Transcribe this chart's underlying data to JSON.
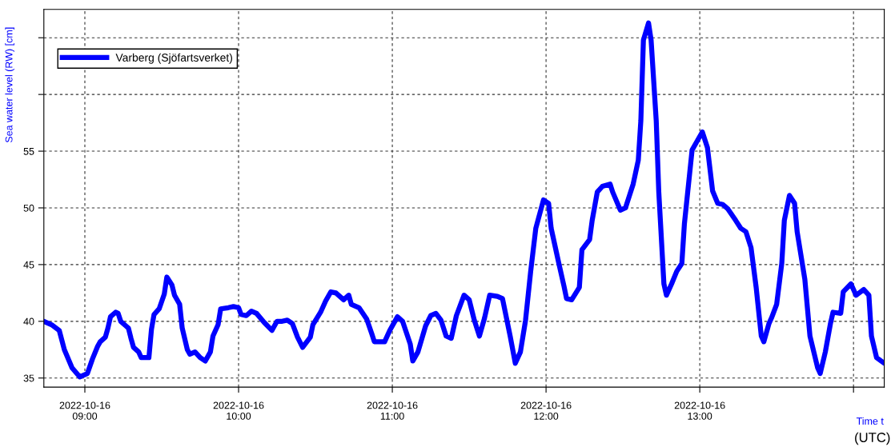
{
  "chart_data": {
    "type": "line",
    "ylabel": "Sea water level (RW) [cm]",
    "xlabel": "Time t",
    "annotations": [
      "(UTC)"
    ],
    "xlim": [
      "2022-10-16T08:44",
      "2022-10-16T14:12"
    ],
    "xticks": [
      {
        "value": "2022-10-16T09:00",
        "label": "2022-10-16\n09:00"
      },
      {
        "value": "2022-10-16T10:00",
        "label": "2022-10-16\n10:00"
      },
      {
        "value": "2022-10-16T11:00",
        "label": "2022-10-16\n11:00"
      },
      {
        "value": "2022-10-16T12:00",
        "label": "2022-10-16\n12:00"
      },
      {
        "value": "2022-10-16T13:00",
        "label": "2022-10-16\n13:00"
      },
      {
        "value": "2022-10-16T14:00",
        "label": null
      }
    ],
    "ylim": [
      34.2,
      67.5
    ],
    "yticks": [
      35,
      40,
      45,
      50,
      55,
      {
        "value": 60,
        "label": null
      },
      {
        "value": 65,
        "label": null
      }
    ],
    "grid": true,
    "legend": "top left",
    "line_style": "solid",
    "marker": "none",
    "series": [
      {
        "name": "Varberg (Sjöfartsverket)",
        "color": "#0000ff",
        "x": [
          "2022-10-16T08:44",
          "2022-10-16T08:47",
          "2022-10-16T08:50",
          "2022-10-16T08:52",
          "2022-10-16T08:55",
          "2022-10-16T08:58",
          "2022-10-16T09:01",
          "2022-10-16T09:03",
          "2022-10-16T09:05",
          "2022-10-16T09:06",
          "2022-10-16T09:08",
          "2022-10-16T09:09",
          "2022-10-16T09:10",
          "2022-10-16T09:12",
          "2022-10-16T09:13",
          "2022-10-16T09:14",
          "2022-10-16T09:16",
          "2022-10-16T09:17",
          "2022-10-16T09:18",
          "2022-10-16T09:19",
          "2022-10-16T09:21",
          "2022-10-16T09:22",
          "2022-10-16T09:25",
          "2022-10-16T09:26",
          "2022-10-16T09:27",
          "2022-10-16T09:29",
          "2022-10-16T09:31",
          "2022-10-16T09:32",
          "2022-10-16T09:34",
          "2022-10-16T09:35",
          "2022-10-16T09:37",
          "2022-10-16T09:38",
          "2022-10-16T09:40",
          "2022-10-16T09:41",
          "2022-10-16T09:43",
          "2022-10-16T09:45",
          "2022-10-16T09:47",
          "2022-10-16T09:49",
          "2022-10-16T09:50",
          "2022-10-16T09:52",
          "2022-10-16T09:53",
          "2022-10-16T09:56",
          "2022-10-16T09:58",
          "2022-10-16T10:00",
          "2022-10-16T10:01",
          "2022-10-16T10:03",
          "2022-10-16T10:05",
          "2022-10-16T10:07",
          "2022-10-16T10:10",
          "2022-10-16T10:13",
          "2022-10-16T10:15",
          "2022-10-16T10:17",
          "2022-10-16T10:19",
          "2022-10-16T10:21",
          "2022-10-16T10:23",
          "2022-10-16T10:25",
          "2022-10-16T10:28",
          "2022-10-16T10:29",
          "2022-10-16T10:32",
          "2022-10-16T10:34",
          "2022-10-16T10:36",
          "2022-10-16T10:38",
          "2022-10-16T10:41",
          "2022-10-16T10:43",
          "2022-10-16T10:44",
          "2022-10-16T10:47",
          "2022-10-16T10:50",
          "2022-10-16T10:52",
          "2022-10-16T10:53",
          "2022-10-16T10:57",
          "2022-10-16T10:59",
          "2022-10-16T11:02",
          "2022-10-16T11:04",
          "2022-10-16T11:07",
          "2022-10-16T11:08",
          "2022-10-16T11:10",
          "2022-10-16T11:13",
          "2022-10-16T11:15",
          "2022-10-16T11:17",
          "2022-10-16T11:19",
          "2022-10-16T11:21",
          "2022-10-16T11:23",
          "2022-10-16T11:25",
          "2022-10-16T11:28",
          "2022-10-16T11:30",
          "2022-10-16T11:32",
          "2022-10-16T11:34",
          "2022-10-16T11:36",
          "2022-10-16T11:38",
          "2022-10-16T11:41",
          "2022-10-16T11:43",
          "2022-10-16T11:46",
          "2022-10-16T11:48",
          "2022-10-16T11:50",
          "2022-10-16T11:52",
          "2022-10-16T11:54",
          "2022-10-16T11:56",
          "2022-10-16T11:59",
          "2022-10-16T12:01",
          "2022-10-16T12:02",
          "2022-10-16T12:05",
          "2022-10-16T12:07",
          "2022-10-16T12:08",
          "2022-10-16T12:10",
          "2022-10-16T12:13",
          "2022-10-16T12:14",
          "2022-10-16T12:17",
          "2022-10-16T12:18",
          "2022-10-16T12:20",
          "2022-10-16T12:22",
          "2022-10-16T12:25",
          "2022-10-16T12:26",
          "2022-10-16T12:29",
          "2022-10-16T12:31",
          "2022-10-16T12:34",
          "2022-10-16T12:36",
          "2022-10-16T12:37",
          "2022-10-16T12:38",
          "2022-10-16T12:40",
          "2022-10-16T12:41",
          "2022-10-16T12:43",
          "2022-10-16T12:44",
          "2022-10-16T12:46",
          "2022-10-16T12:47",
          "2022-10-16T12:49",
          "2022-10-16T12:51",
          "2022-10-16T12:53",
          "2022-10-16T12:54",
          "2022-10-16T12:57",
          "2022-10-16T12:59",
          "2022-10-16T13:01",
          "2022-10-16T13:03",
          "2022-10-16T13:05",
          "2022-10-16T13:07",
          "2022-10-16T13:09",
          "2022-10-16T13:11",
          "2022-10-16T13:14",
          "2022-10-16T13:16",
          "2022-10-16T13:18",
          "2022-10-16T13:20",
          "2022-10-16T13:22",
          "2022-10-16T13:24",
          "2022-10-16T13:25",
          "2022-10-16T13:27",
          "2022-10-16T13:28",
          "2022-10-16T13:30",
          "2022-10-16T13:32",
          "2022-10-16T13:33",
          "2022-10-16T13:35",
          "2022-10-16T13:37",
          "2022-10-16T13:38",
          "2022-10-16T13:41",
          "2022-10-16T13:43",
          "2022-10-16T13:46",
          "2022-10-16T13:47",
          "2022-10-16T13:49",
          "2022-10-16T13:51",
          "2022-10-16T13:52",
          "2022-10-16T13:55",
          "2022-10-16T13:56",
          "2022-10-16T13:59",
          "2022-10-16T14:01",
          "2022-10-16T14:04",
          "2022-10-16T14:06",
          "2022-10-16T14:07",
          "2022-10-16T14:09",
          "2022-10-16T14:12"
        ],
        "values": [
          40.0,
          39.7,
          39.2,
          37.5,
          35.9,
          35.1,
          35.4,
          36.7,
          37.8,
          38.2,
          38.6,
          39.4,
          40.4,
          40.8,
          40.7,
          40.0,
          39.6,
          39.4,
          38.5,
          37.7,
          37.3,
          36.8,
          36.8,
          39.3,
          40.6,
          41.1,
          42.4,
          43.9,
          43.2,
          42.3,
          41.5,
          39.4,
          37.5,
          37.1,
          37.3,
          36.8,
          36.5,
          37.3,
          38.7,
          39.7,
          41.1,
          41.2,
          41.3,
          41.2,
          40.6,
          40.5,
          40.9,
          40.7,
          39.9,
          39.2,
          40.0,
          40.0,
          40.1,
          39.8,
          38.6,
          37.7,
          38.6,
          39.7,
          40.8,
          41.8,
          42.6,
          42.5,
          41.9,
          42.3,
          41.5,
          41.2,
          40.2,
          38.9,
          38.2,
          38.2,
          39.2,
          40.4,
          40.0,
          38.0,
          36.5,
          37.3,
          39.6,
          40.5,
          40.7,
          40.1,
          38.7,
          38.5,
          40.5,
          42.3,
          41.9,
          40.1,
          38.7,
          40.3,
          42.3,
          42.2,
          42.0,
          38.7,
          36.3,
          37.3,
          40.1,
          44.4,
          48.2,
          50.7,
          50.4,
          48.2,
          45.1,
          43.1,
          42.0,
          41.9,
          43.0,
          46.3,
          47.2,
          48.9,
          51.4,
          51.9,
          52.1,
          51.4,
          49.8,
          50.0,
          52.1,
          54.2,
          57.7,
          64.8,
          66.3,
          64.8,
          57.7,
          51.4,
          43.3,
          42.3,
          43.3,
          44.4,
          45.1,
          48.6,
          55.1,
          55.9,
          56.7,
          55.3,
          51.5,
          50.4,
          50.3,
          49.9,
          48.9,
          48.2,
          47.9,
          46.5,
          43.0,
          38.7,
          38.2,
          39.8,
          40.3,
          41.5,
          45.1,
          48.9,
          51.1,
          50.4,
          47.9,
          43.7,
          38.7,
          35.9,
          35.4,
          37.3,
          39.8,
          40.8,
          40.7,
          42.6,
          43.3,
          42.3,
          42.8,
          42.3,
          38.7,
          36.8,
          36.3
        ]
      }
    ]
  }
}
